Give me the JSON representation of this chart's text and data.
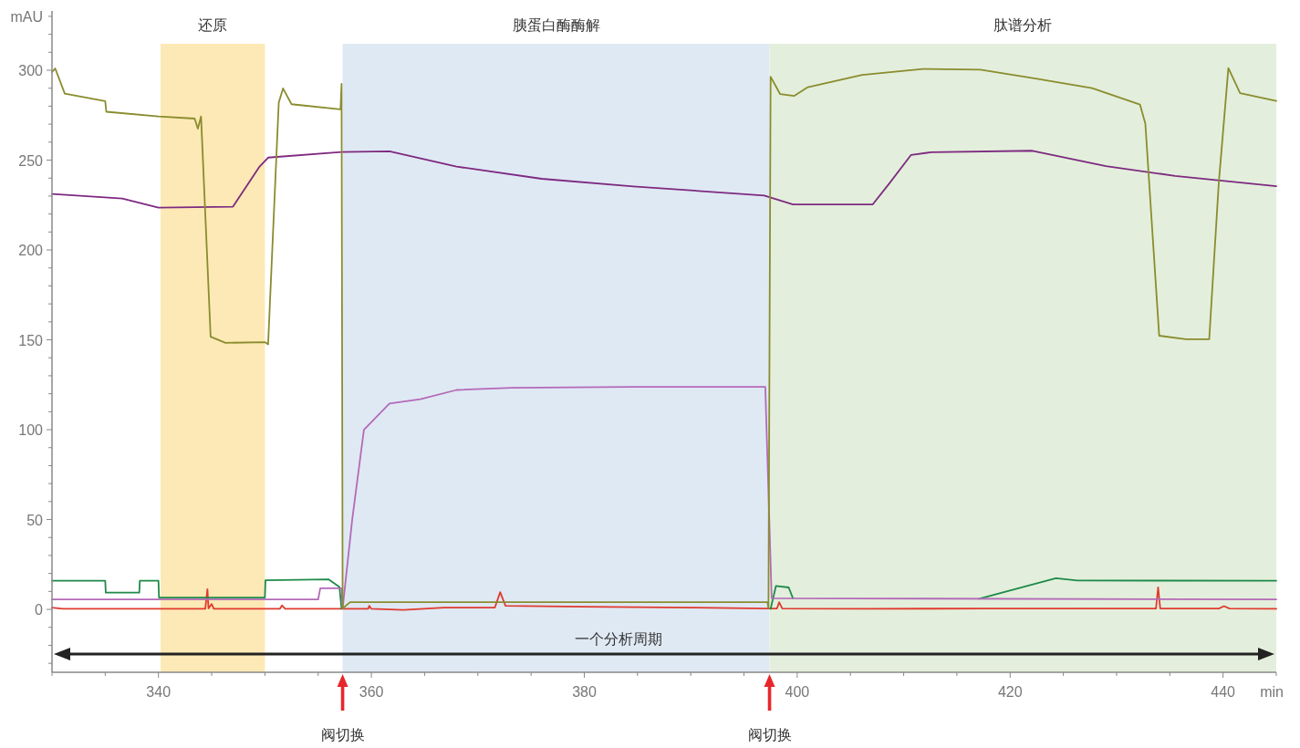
{
  "chart_data": {
    "type": "line",
    "xlabel": "min",
    "ylabel": "mAU",
    "xlim": [
      330,
      445
    ],
    "ylim": [
      -35,
      333
    ],
    "xticks": [
      {
        "value": 330,
        "label": null
      },
      {
        "value": 335,
        "label": null
      },
      340,
      {
        "value": 345,
        "label": null
      },
      {
        "value": 350,
        "label": null
      },
      {
        "value": 355,
        "label": null
      },
      360,
      {
        "value": 365,
        "label": null
      },
      {
        "value": 370,
        "label": null
      },
      {
        "value": 375,
        "label": null
      },
      380,
      {
        "value": 385,
        "label": null
      },
      {
        "value": 390,
        "label": null
      },
      {
        "value": 395,
        "label": null
      },
      400,
      {
        "value": 405,
        "label": null
      },
      {
        "value": 410,
        "label": null
      },
      {
        "value": 415,
        "label": null
      },
      420,
      {
        "value": 425,
        "label": null
      },
      {
        "value": 430,
        "label": null
      },
      {
        "value": 435,
        "label": null
      },
      440,
      {
        "value": 445,
        "label": null
      }
    ],
    "yticks": [
      {
        "value": -30,
        "label": null
      },
      {
        "value": -20,
        "label": null
      },
      {
        "value": -10,
        "label": null
      },
      0,
      {
        "value": 10,
        "label": null
      },
      {
        "value": 20,
        "label": null
      },
      {
        "value": 30,
        "label": null
      },
      {
        "value": 40,
        "label": null
      },
      50,
      {
        "value": 60,
        "label": null
      },
      {
        "value": 70,
        "label": null
      },
      {
        "value": 80,
        "label": null
      },
      {
        "value": 90,
        "label": null
      },
      100,
      {
        "value": 110,
        "label": null
      },
      {
        "value": 120,
        "label": null
      },
      {
        "value": 130,
        "label": null
      },
      {
        "value": 140,
        "label": null
      },
      150,
      {
        "value": 160,
        "label": null
      },
      {
        "value": 170,
        "label": null
      },
      {
        "value": 180,
        "label": null
      },
      {
        "value": 190,
        "label": null
      },
      200,
      {
        "value": 210,
        "label": null
      },
      {
        "value": 220,
        "label": null
      },
      {
        "value": 230,
        "label": null
      },
      {
        "value": 240,
        "label": null
      },
      250,
      {
        "value": 260,
        "label": null
      },
      {
        "value": 270,
        "label": null
      },
      {
        "value": 280,
        "label": null
      },
      {
        "value": 290,
        "label": null
      },
      300,
      {
        "value": 310,
        "label": null
      },
      {
        "value": 320,
        "label": null
      },
      {
        "value": 330,
        "label": null
      }
    ],
    "grid": false,
    "bands": [
      {
        "axis": "x",
        "from": 340.2,
        "to": 350,
        "label": "还原",
        "color": "#fde9b5"
      },
      {
        "axis": "x",
        "from": 357.3,
        "to": 397.4,
        "label": "胰蛋白酶酶解",
        "color": "#dfe9f4"
      },
      {
        "axis": "x",
        "from": 397.4,
        "to": 445,
        "label": "肽谱分析",
        "color": "#e3efdc"
      }
    ],
    "annotations": [
      "一个分析周期",
      "阀切换",
      "阀切换"
    ],
    "series": [
      {
        "color": "#e03a2e",
        "x": [
          330,
          331,
          344.4,
          344.6,
          344.7,
          345.0,
          345.2,
          351.4,
          351.6,
          351.9,
          357.2,
          359.7,
          359.8,
          360.0,
          363,
          366.8,
          371.6,
          372.1,
          372.6,
          380,
          390,
          397.2,
          398.1,
          398.3,
          398.6,
          406.5,
          417.5,
          433.7,
          433.9,
          434.1,
          439.6,
          440.1,
          440.6,
          445
        ],
        "values": [
          1,
          0.3,
          0.3,
          11.3,
          0.5,
          3,
          0.3,
          0.3,
          2.2,
          0.3,
          0.3,
          0.3,
          2,
          0.3,
          -0.3,
          1,
          1,
          9.6,
          2,
          1.5,
          1,
          0.5,
          0.5,
          4,
          0.5,
          0.3,
          0.5,
          0.5,
          12.2,
          0.5,
          0.5,
          1.8,
          0.5,
          0.3
        ]
      },
      {
        "color": "#1e8a4a",
        "x": [
          330,
          335.0,
          335.05,
          338.2,
          338.25,
          340.0,
          340.05,
          350.0,
          350.05,
          356.0,
          357.0,
          357.2,
          377,
          397.5,
          398.0,
          399.2,
          399.6,
          408,
          417.1,
          424.3,
          426.3,
          445
        ],
        "values": [
          15.9,
          15.9,
          9.3,
          9.3,
          15.9,
          15.9,
          6.6,
          6.6,
          16.2,
          16.7,
          12.5,
          0.3,
          null,
          0.3,
          13,
          12.2,
          6.2,
          null,
          5.9,
          17.3,
          16.1,
          15.9
        ]
      },
      {
        "color": "#b46ab8",
        "x": [
          330,
          355.0,
          355.2,
          357.2,
          357.3,
          358.2,
          359.3,
          361.7,
          364.6,
          368.0,
          373.2,
          384.6,
          397.0,
          397.6,
          445
        ],
        "values": [
          5.5,
          5.5,
          11.8,
          11.8,
          0.5,
          50,
          100,
          114.5,
          117,
          122.1,
          123.3,
          123.8,
          123.8,
          6.2,
          5.5
        ]
      },
      {
        "color": "#7e2a80",
        "x": [
          330,
          336.6,
          340,
          347.0,
          349.5,
          350.3,
          357.2,
          361.7,
          368.0,
          376.0,
          384.6,
          396.9,
          399.6,
          407.1,
          408.7,
          410.7,
          412.6,
          422.1,
          429.0,
          435.5,
          445
        ],
        "values": [
          231.2,
          228.6,
          223.6,
          224.1,
          246.4,
          251.4,
          254.5,
          254.9,
          246.4,
          239.6,
          235.4,
          230.3,
          225.3,
          225.4,
          237.4,
          252.9,
          254.4,
          255.2,
          246.7,
          241.2,
          235.5
        ]
      },
      {
        "color": "#8a8c2e",
        "x": [
          330,
          330.3,
          331.2,
          335.0,
          335.1,
          340,
          343.4,
          343.7,
          344.0,
          344.9,
          346.3,
          350.0,
          350.3,
          351.3,
          351.7,
          352.5,
          357.1,
          357.2,
          357.3,
          358,
          397.2,
          397.3,
          397.5,
          398.4,
          399.7,
          401.0,
          406.1,
          411.8,
          417.2,
          422.4,
          427.7,
          432.2,
          432.7,
          434.0,
          436.5,
          438.7,
          439.6,
          440.5,
          441.6,
          445
        ],
        "values": [
          299,
          301,
          287,
          282.8,
          276.9,
          274.3,
          273.1,
          267.5,
          274.3,
          151.7,
          148.3,
          148.7,
          147.5,
          282,
          289.9,
          281.1,
          278.2,
          292.4,
          0.5,
          4,
          4,
          0.5,
          296.4,
          286.7,
          285.7,
          290.6,
          297.4,
          300.7,
          300.3,
          295.4,
          290.0,
          280.9,
          270.3,
          152.3,
          150.3,
          150.3,
          237.4,
          301.2,
          287.3,
          282.9
        ]
      }
    ]
  }
}
